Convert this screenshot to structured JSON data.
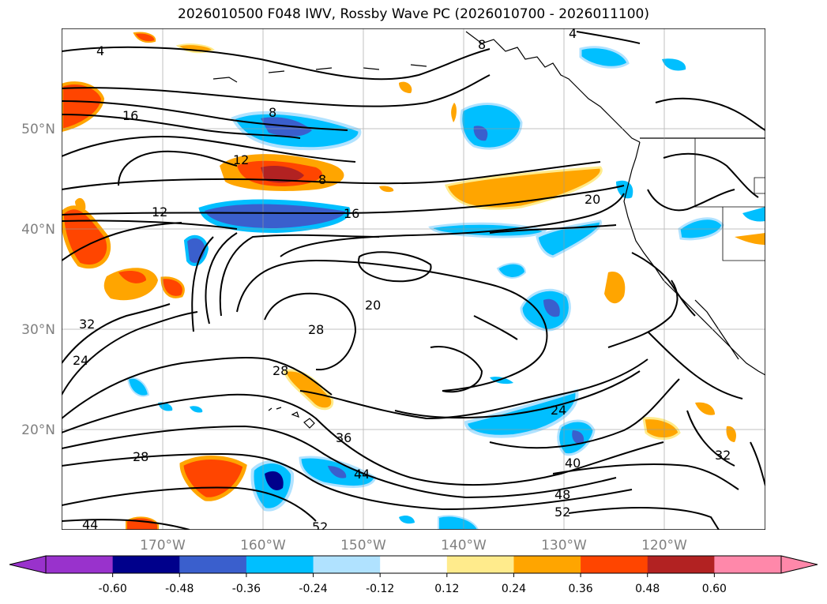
{
  "title": "2026010500 F048 IWV, Rossby Wave PC (2026010700 - 2026011100)",
  "lat_labels": [
    "50°N",
    "40°N",
    "30°N",
    "20°N"
  ],
  "lon_labels": [
    "170°W",
    "160°W",
    "150°W",
    "140°W",
    "130°W",
    "120°W"
  ],
  "colorbar": {
    "colors": [
      "#9932cc",
      "#00008b",
      "#3a5fcd",
      "#00bfff",
      "#b0e2ff",
      "#ffffff",
      "#ffeb8c",
      "#ffa500",
      "#ff4500",
      "#b22222",
      "#ff88aa"
    ],
    "tick_labels": [
      "-0.60",
      "-0.48",
      "-0.36",
      "-0.24",
      "-0.12",
      "0.12",
      "0.24",
      "0.36",
      "0.48",
      "0.60"
    ]
  },
  "contour_labels": [
    "4",
    "8",
    "16",
    "8",
    "12",
    "8",
    "12",
    "16",
    "20",
    "20",
    "28",
    "32",
    "24",
    "28",
    "28",
    "24",
    "36",
    "44",
    "40",
    "48",
    "52",
    "32",
    "44",
    "52",
    "4"
  ]
}
